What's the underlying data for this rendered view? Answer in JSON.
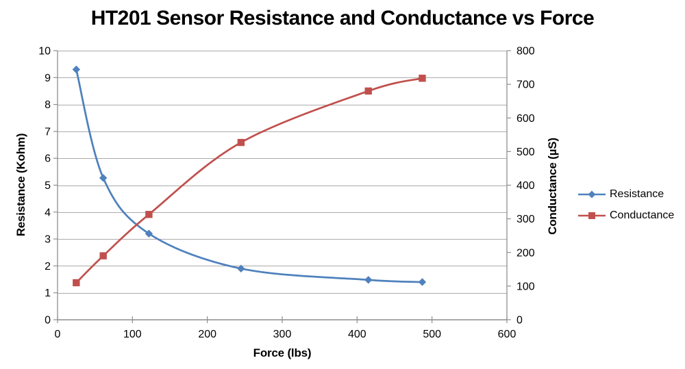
{
  "chart_data": {
    "type": "line",
    "title": "HT201 Sensor Resistance and Conductance vs Force",
    "xlabel": "Force (lbs)",
    "ylabel_left": "Resistance (Kohm)",
    "ylabel_right": "Conductance (µS)",
    "x": [
      25,
      61,
      122,
      245,
      415,
      487
    ],
    "series": [
      {
        "name": "Resistance",
        "yaxis": "left",
        "marker": "diamond",
        "color": "#4F81BD",
        "values": [
          9.3,
          5.27,
          3.2,
          1.9,
          1.48,
          1.4
        ]
      },
      {
        "name": "Conductance",
        "yaxis": "right",
        "marker": "square",
        "color": "#C0504D",
        "values": [
          110,
          190,
          313,
          527,
          680,
          718
        ]
      }
    ],
    "xlim": [
      0,
      600
    ],
    "ylim_left": [
      0,
      10
    ],
    "ylim_right": [
      0,
      800
    ],
    "x_ticks": [
      0,
      100,
      200,
      300,
      400,
      500,
      600
    ],
    "y_ticks_left": [
      0,
      1,
      2,
      3,
      4,
      5,
      6,
      7,
      8,
      9,
      10
    ],
    "y_ticks_right": [
      0,
      100,
      200,
      300,
      400,
      500,
      600,
      700,
      800
    ],
    "grid": true,
    "smooth": true,
    "legend_position": "right"
  },
  "colors": {
    "background": "#FFFFFF",
    "gridline": "#ABABAB",
    "axis": "#8E8E8E",
    "text": "#000000"
  }
}
